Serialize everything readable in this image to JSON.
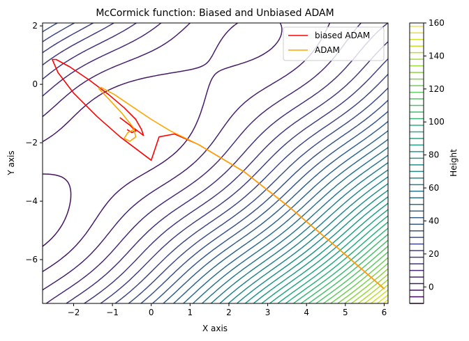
{
  "chart_data": {
    "type": "contour",
    "title": "McCormick function: Biased and Unbiased ADAM",
    "xlabel": "X axis",
    "ylabel": "Y axis",
    "xlim": [
      -2.8,
      6.1
    ],
    "ylim": [
      -7.5,
      2.1
    ],
    "xticks": [
      -2,
      -1,
      0,
      1,
      2,
      3,
      4,
      5,
      6
    ],
    "yticks": [
      -6,
      -4,
      -2,
      0,
      2
    ],
    "contour": {
      "function": "sin(x+y) + (x-y)^2 - 1.5x + 2.5y + 1",
      "levels_min": -10,
      "levels_max": 160,
      "levels_step": 4,
      "colormap": "viridis"
    },
    "colorbar": {
      "label": "Height",
      "ticks": [
        0,
        20,
        40,
        60,
        80,
        100,
        120,
        140,
        160
      ]
    },
    "legend": {
      "position": "top-right"
    },
    "series": [
      {
        "name": "biased ADAM",
        "color": "#ff0000",
        "x": [
          6.0,
          4.8,
          3.6,
          2.4,
          1.2,
          0.6,
          0.2,
          0.0,
          -0.3,
          -0.8,
          -1.4,
          -2.0,
          -2.4,
          -2.55,
          -2.45,
          -2.1,
          -1.6,
          -1.1,
          -0.7,
          -0.4,
          -0.25,
          -0.2,
          -0.35,
          -0.6,
          -0.8,
          -0.75,
          -0.55,
          -0.4,
          -0.5,
          -0.62
        ],
        "y": [
          -7.0,
          -5.6,
          -4.25,
          -3.0,
          -2.05,
          -1.7,
          -1.8,
          -2.6,
          -2.3,
          -1.8,
          -1.1,
          -0.3,
          0.4,
          0.85,
          0.85,
          0.6,
          0.15,
          -0.35,
          -0.8,
          -1.2,
          -1.55,
          -1.75,
          -1.6,
          -1.35,
          -1.15,
          -1.2,
          -1.4,
          -1.6,
          -1.65,
          -1.55
        ]
      },
      {
        "name": "ADAM",
        "color": "#ffa500",
        "x": [
          6.0,
          4.8,
          3.6,
          2.4,
          1.2,
          0.5,
          0.0,
          -0.45,
          -0.95,
          -1.3,
          -1.35,
          -1.1,
          -0.75,
          -0.45,
          -0.4,
          -0.55,
          -0.7,
          -0.6,
          -0.45
        ],
        "y": [
          -7.0,
          -5.6,
          -4.25,
          -3.0,
          -2.05,
          -1.6,
          -1.2,
          -0.8,
          -0.35,
          -0.1,
          -0.15,
          -0.5,
          -1.0,
          -1.5,
          -1.8,
          -1.95,
          -1.85,
          -1.65,
          -1.55
        ]
      }
    ]
  }
}
